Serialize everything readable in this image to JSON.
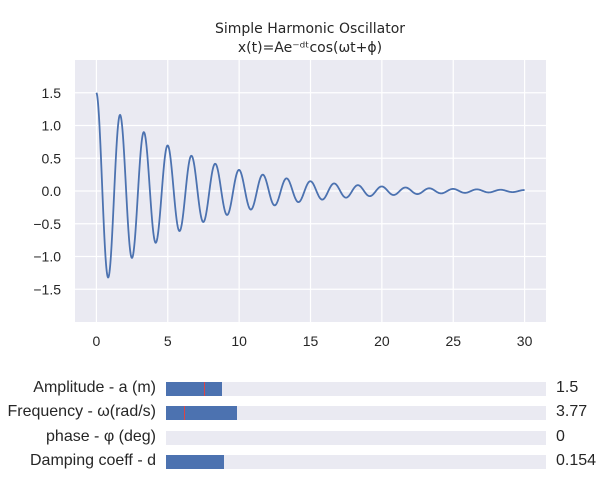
{
  "chart_data": {
    "type": "line",
    "title": "Simple Harmonic Oscillator",
    "subtitle": "x(t)=Ae⁻ᵈᵗcos(ωt+ϕ)",
    "xlabel": "",
    "ylabel": "",
    "xlim": [
      -1.5,
      31.5
    ],
    "ylim": [
      -2.0,
      2.0
    ],
    "xticks": [
      0,
      5,
      10,
      15,
      20,
      25,
      30
    ],
    "yticks": [
      -1.5,
      -1.0,
      -0.5,
      0.0,
      0.5,
      1.0,
      1.5
    ],
    "xtick_labels": [
      "0",
      "5",
      "10",
      "15",
      "20",
      "25",
      "30"
    ],
    "ytick_labels": [
      "−1.5",
      "−1.0",
      "−0.5",
      "0.0",
      "0.5",
      "1.0",
      "1.5"
    ],
    "grid": true,
    "series": [
      {
        "function": "A*exp(-d*t)*cos(w*t+phi)",
        "A": 1.5,
        "w": 3.77,
        "phi": 0,
        "d": 0.154,
        "t_range": [
          0,
          30
        ],
        "color": "#4c72b0"
      }
    ]
  },
  "sliders": [
    {
      "label": "Amplitude - a (m)",
      "value": "1.5",
      "fill_fraction": 0.147,
      "init_fraction": 0.1
    },
    {
      "label": "Frequency - ω(rad/s)",
      "value": "3.77",
      "fill_fraction": 0.187,
      "init_fraction": 0.048
    },
    {
      "label": "phase - φ (deg)",
      "value": "0",
      "fill_fraction": 0.0,
      "init_fraction": null
    },
    {
      "label": "Damping coeff - d",
      "value": "0.154",
      "fill_fraction": 0.153,
      "init_fraction": null
    }
  ],
  "colors": {
    "axes_bg": "#eaeaf2",
    "grid": "#ffffff",
    "line": "#4c72b0",
    "slider_fill": "#4c72b0",
    "slider_track": "#eaeaf2",
    "slider_init": "#dd4444"
  }
}
